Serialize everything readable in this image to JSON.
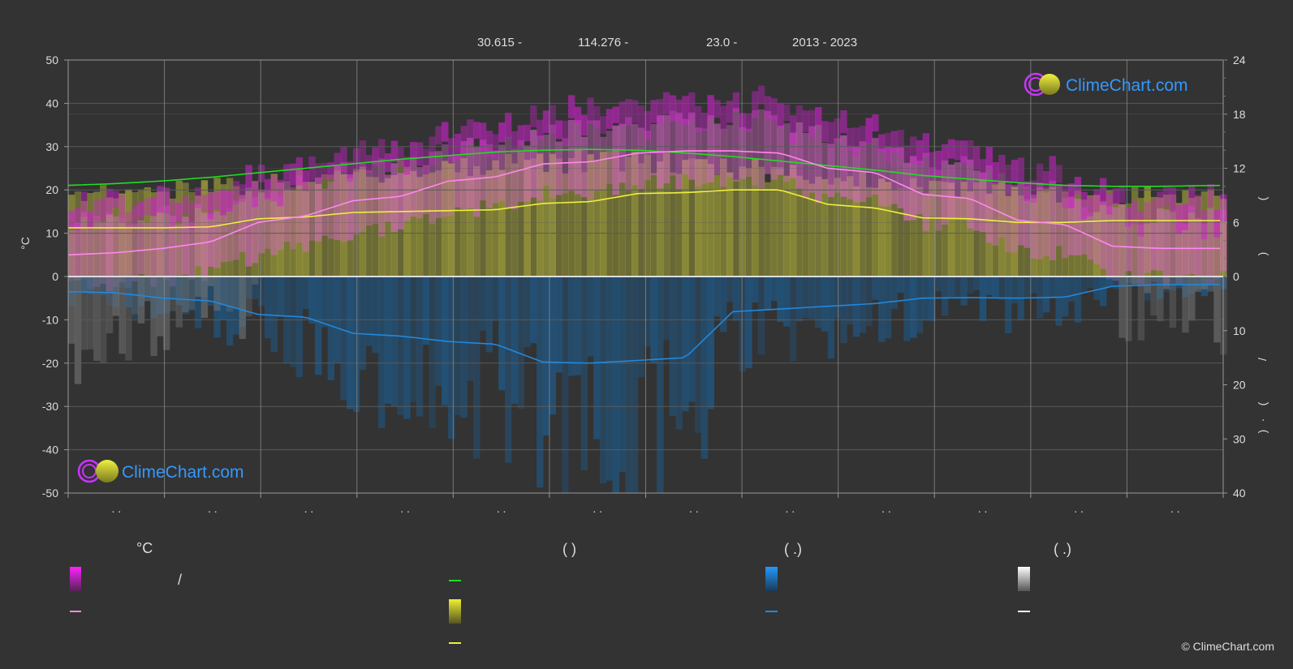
{
  "header": {
    "latitude": "30.615 -",
    "longitude": "114.276 -",
    "elevation": "23.0 -",
    "years": "2013 - 2023"
  },
  "brand": {
    "name": "ClimeChart.com",
    "copyright": "© ClimeChart.com"
  },
  "chart_data": {
    "type": "line",
    "x_tick_labels": [
      ". .",
      ". .",
      ". .",
      ". .",
      ". .",
      ". .",
      ". .",
      ". .",
      ". .",
      ". .",
      ". .",
      ". ."
    ],
    "y_left": {
      "label": "°C",
      "ylim": [
        -50,
        50
      ],
      "ticks": [
        50,
        40,
        30,
        20,
        10,
        0,
        -10,
        -20,
        -30,
        -40,
        -50
      ]
    },
    "y_right_top": {
      "ylim": [
        0,
        24
      ],
      "ticks": [
        24,
        18,
        12,
        6,
        0
      ]
    },
    "y_right_bottom": {
      "ylim": [
        0,
        40
      ],
      "ticks": [
        10,
        20,
        30,
        40
      ]
    },
    "right_axis_glyphs": [
      "(",
      ")",
      "/",
      "(",
      "·",
      ")"
    ],
    "grid": true,
    "x_day": [
      0,
      15,
      30,
      45,
      60,
      75,
      90,
      105,
      120,
      135,
      150,
      165,
      180,
      195,
      210,
      225,
      240,
      255,
      270,
      285,
      300,
      315,
      330,
      345,
      365
    ],
    "series": [
      {
        "key": "daylight_hours",
        "axis": "right_top",
        "color": "#22dd22",
        "values": [
          10.1,
          10.3,
          10.6,
          11.0,
          11.5,
          12.0,
          12.5,
          13.0,
          13.4,
          13.8,
          14.0,
          14.1,
          14.0,
          13.7,
          13.3,
          12.8,
          12.3,
          11.8,
          11.2,
          10.8,
          10.4,
          10.1,
          10.0,
          10.0,
          10.1
        ]
      },
      {
        "key": "sunshine_hours",
        "axis": "right_top",
        "color": "#eeee44",
        "values": [
          5.4,
          5.4,
          5.4,
          5.5,
          6.4,
          6.6,
          7.1,
          7.2,
          7.3,
          7.4,
          8.1,
          8.3,
          9.2,
          9.3,
          9.6,
          9.6,
          8.0,
          7.6,
          6.5,
          6.4,
          6.0,
          6.0,
          6.2,
          6.2,
          6.2
        ]
      },
      {
        "key": "mean_temperature",
        "axis": "left",
        "color": "#ff88ee",
        "values": [
          5,
          5.5,
          6.5,
          8,
          12.5,
          14,
          17.5,
          18.5,
          22,
          23,
          26,
          26.5,
          28.5,
          29,
          29,
          28.5,
          25,
          24,
          19,
          18,
          13,
          12,
          7,
          6.5,
          6.5
        ]
      },
      {
        "key": "precipitation_mm",
        "axis": "right_bottom",
        "color": "#2288dd",
        "values": [
          2.8,
          3.0,
          4.0,
          4.5,
          7.0,
          7.5,
          10.5,
          11.0,
          12.0,
          12.5,
          15.8,
          16.0,
          15.5,
          15.0,
          6.5,
          6.0,
          5.5,
          5.0,
          4.0,
          3.9,
          4.0,
          3.8,
          1.8,
          1.5,
          1.5
        ]
      },
      {
        "key": "snowfall_cm",
        "axis": "right_bottom",
        "color": "#ffffff",
        "values": [
          0.3,
          0.2,
          0.1,
          0,
          0,
          0,
          0,
          0,
          0,
          0,
          0,
          0,
          0,
          0,
          0,
          0,
          0,
          0,
          0,
          0,
          0,
          0,
          0,
          0,
          0.1
        ]
      }
    ],
    "legend": {
      "temperature": {
        "header": "°C",
        "range_label": "/"
      },
      "sun": {
        "header": "(          )"
      },
      "rain": {
        "header": "(    .)"
      },
      "snow": {
        "header": "(    .)"
      }
    },
    "colors": {
      "background": "#333333",
      "grid": "#5a5a5a",
      "temp_band": "#cc22cc",
      "sun_band": "#a4a43a",
      "rain_band": "#1e5a8a",
      "snow_band": "#777777"
    }
  }
}
